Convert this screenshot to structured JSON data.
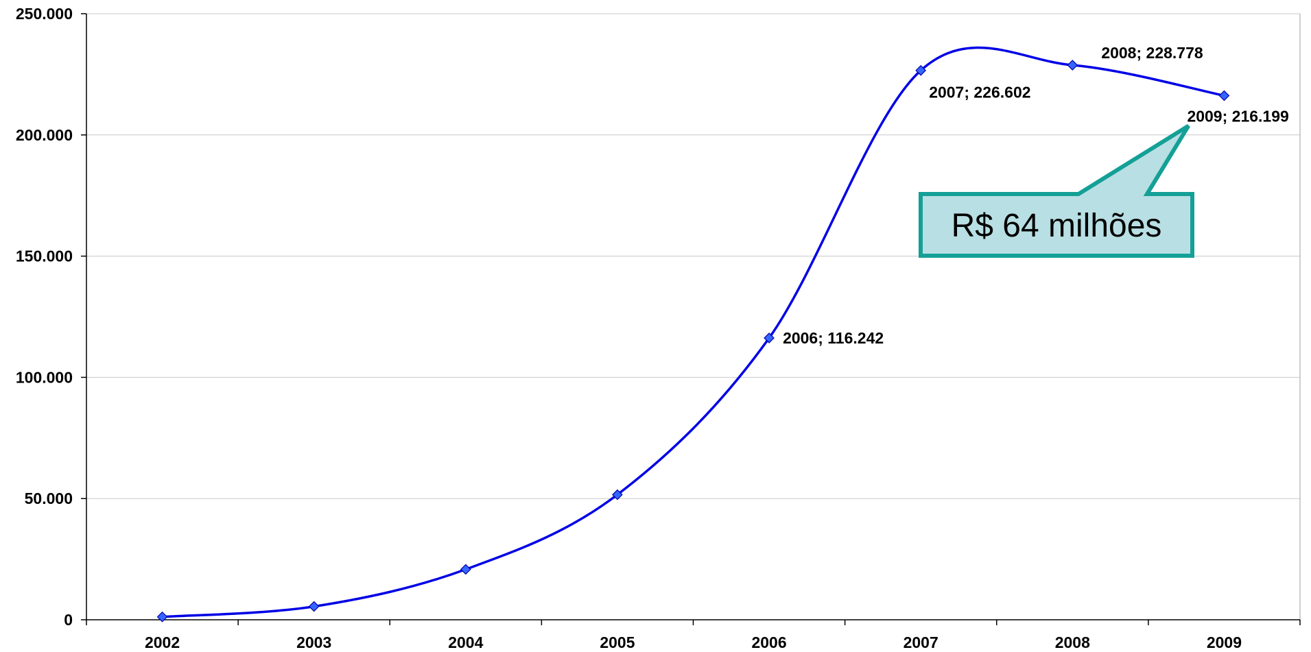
{
  "chart_data": {
    "type": "line",
    "x": [
      "2002",
      "2003",
      "2004",
      "2005",
      "2006",
      "2007",
      "2008",
      "2009"
    ],
    "series": [
      {
        "values": [
          1200,
          5500,
          20800,
          51600,
          116242,
          226602,
          228778,
          216199
        ],
        "color": "#0000e6",
        "marker_color": "#3366ff"
      }
    ],
    "y_tick_labels": [
      "0",
      "50.000",
      "100.000",
      "150.000",
      "200.000",
      "250.000"
    ],
    "ylim": [
      0,
      250000
    ],
    "y_tick_step": 50000,
    "grid": "horizontal",
    "smooth": true,
    "point_labels": [
      {
        "index": 4,
        "text": "2006; 116.242",
        "anchor": "right"
      },
      {
        "index": 5,
        "text": "2007; 226.602",
        "anchor": "below-right"
      },
      {
        "index": 6,
        "text": "2008; 228.778",
        "anchor": "above-right"
      },
      {
        "index": 7,
        "text": "2009; 216.199",
        "anchor": "below"
      }
    ],
    "annotation": {
      "text": "R$ 64 milhões",
      "target_index": 7,
      "fill": "#b8dfe3",
      "border": "#14a096"
    }
  }
}
